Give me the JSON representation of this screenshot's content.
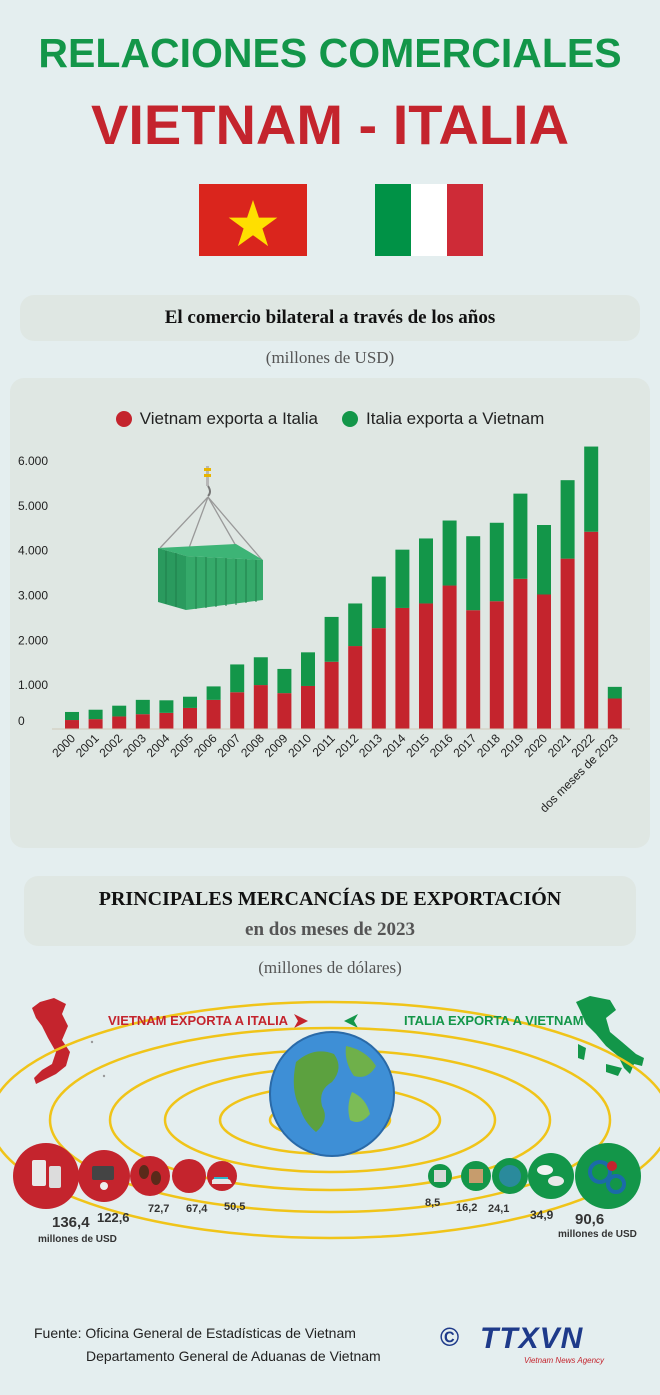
{
  "header": {
    "title_line1": "RELACIONES COMERCIALES",
    "title_line2": "VIETNAM - ITALIA"
  },
  "flags": {
    "vietnam": {
      "red": "#da251d",
      "star": "#ffdf00"
    },
    "italy": {
      "green": "#009246",
      "white": "#ffffff",
      "red": "#ce2b37"
    }
  },
  "section1": {
    "heading": "El comercio bilateral a través de los años",
    "unit": "(millones de USD)"
  },
  "colors": {
    "vietnam": "#c4242d",
    "italy": "#139649"
  },
  "chart_data": {
    "type": "bar",
    "stacked": true,
    "categories": [
      "2000",
      "2001",
      "2002",
      "2003",
      "2004",
      "2005",
      "2006",
      "2007",
      "2008",
      "2009",
      "2010",
      "2011",
      "2012",
      "2013",
      "2014",
      "2015",
      "2016",
      "2017",
      "2018",
      "2019",
      "2020",
      "2021",
      "2022",
      "dos meses de 2023"
    ],
    "series": [
      {
        "name": "Vietnam exporta a Italia",
        "color": "#c4242d",
        "values": [
          200,
          220,
          280,
          330,
          360,
          470,
          650,
          820,
          980,
          800,
          960,
          1500,
          1850,
          2250,
          2700,
          2800,
          3200,
          2650,
          2850,
          3350,
          3000,
          3800,
          4400,
          680
        ]
      },
      {
        "name": "Italia exporta a Vietnam",
        "color": "#139649",
        "values": [
          180,
          210,
          240,
          320,
          280,
          250,
          300,
          620,
          620,
          540,
          750,
          1000,
          950,
          1150,
          1300,
          1450,
          1450,
          1650,
          1750,
          1900,
          1550,
          1750,
          1900,
          260
        ]
      }
    ],
    "yticks": [
      "0",
      "1.000",
      "2.000",
      "3.000",
      "4.000",
      "5.000",
      "6.000"
    ],
    "ylim": [
      0,
      6000
    ],
    "legend_position": "top",
    "grid": false
  },
  "section2": {
    "heading": "PRINCIPALES MERCANCÍAS DE EXPORTACIÓN",
    "subheading": "en dos meses de 2023",
    "unit": "(millones de dólares)",
    "vietnam_label": "VIETNAM EXPORTA A ITALIA",
    "italy_label": "ITALIA EXPORTA A VIETNAM",
    "vietnam_values": [
      "136,4",
      "122,6",
      "72,7",
      "67,4",
      "50,5"
    ],
    "italy_values": [
      "8,5",
      "16,2",
      "24,1",
      "34,9",
      "90,6"
    ],
    "unit_small_left": "millones de USD",
    "unit_small_right": "millones de USD"
  },
  "footer": {
    "source_line1": "Fuente: Oficina General de Estadísticas de Vietnam",
    "source_line2": "Departamento General de Aduanas de Vietnam",
    "logo_text": "TTXVN",
    "logo_sub": "Vietnam News Agency",
    "copyright": "©"
  }
}
